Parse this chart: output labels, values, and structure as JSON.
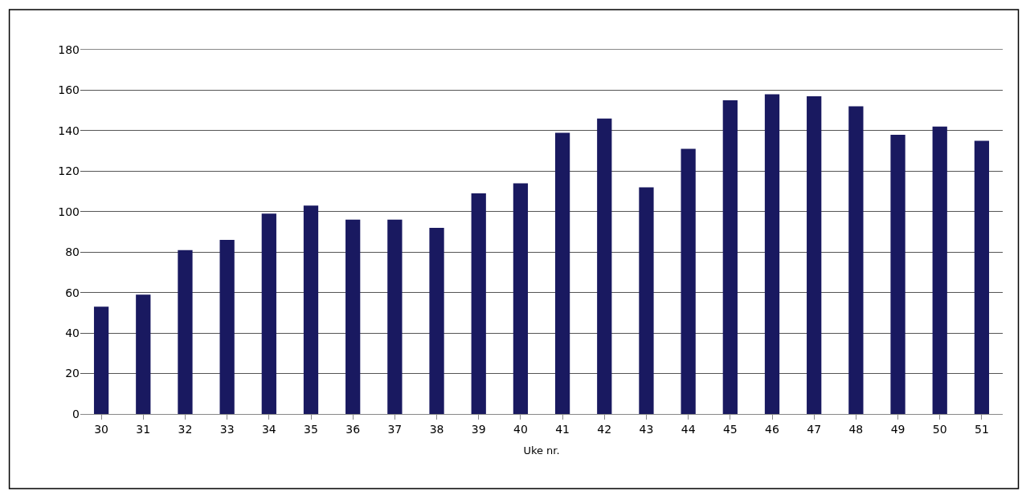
{
  "chart_data": {
    "type": "bar",
    "xlabel": "Uke nr.",
    "categories": [
      "30",
      "31",
      "32",
      "33",
      "34",
      "35",
      "36",
      "37",
      "38",
      "39",
      "40",
      "41",
      "42",
      "43",
      "44",
      "45",
      "46",
      "47",
      "48",
      "49",
      "50",
      "51"
    ],
    "values": [
      53,
      59,
      81,
      86,
      99,
      103,
      96,
      96,
      92,
      109,
      114,
      139,
      146,
      112,
      131,
      155,
      158,
      157,
      152,
      138,
      142,
      135
    ],
    "color": "#191960",
    "ylim": [
      0,
      180
    ],
    "yticks": [
      0,
      20,
      40,
      60,
      80,
      100,
      120,
      140,
      160,
      180
    ],
    "grid": "y"
  }
}
